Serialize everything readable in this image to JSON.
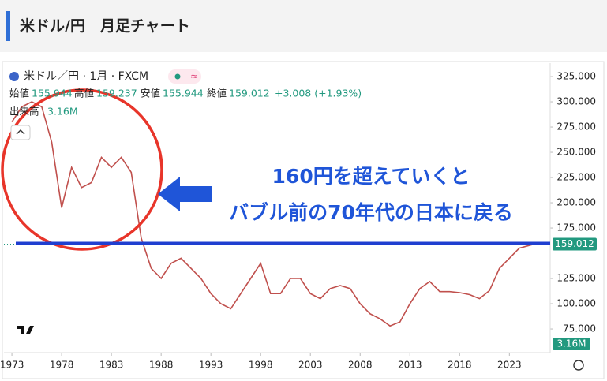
{
  "header": {
    "title": "米ドル/円　月足チャート"
  },
  "chart_data": {
    "type": "line",
    "symbol": "米ドル／円 · 1月 · FXCM",
    "legend": {
      "open_label": "始値",
      "open": 155.944,
      "high_label": "高値",
      "high": 159.237,
      "low_label": "安値",
      "low": 155.944,
      "close_label": "終値",
      "close": 159.012,
      "change": "+3.008 (+1.93%)",
      "volume_label": "出来高",
      "volume": "3.16M"
    },
    "annotations": [
      "160円を超えていくと",
      "バブル前の70年代の日本に戻る"
    ],
    "hline": 160,
    "series": [
      {
        "name": "米ドル／円",
        "color": "#c0504d",
        "x": [
          1973,
          1974,
          1975,
          1976,
          1977,
          1978,
          1979,
          1980,
          1981,
          1982,
          1983,
          1984,
          1985,
          1986,
          1987,
          1988,
          1989,
          1990,
          1991,
          1992,
          1993,
          1994,
          1995,
          1996,
          1997,
          1998,
          1999,
          2000,
          2001,
          2002,
          2003,
          2004,
          2005,
          2006,
          2007,
          2008,
          2009,
          2010,
          2011,
          2012,
          2013,
          2014,
          2015,
          2016,
          2017,
          2018,
          2019,
          2020,
          2021,
          2022,
          2023,
          2024,
          2025.5
        ],
        "values": [
          280,
          295,
          300,
          295,
          260,
          195,
          235,
          215,
          220,
          245,
          235,
          245,
          230,
          165,
          135,
          125,
          140,
          145,
          135,
          125,
          110,
          100,
          95,
          110,
          125,
          140,
          110,
          110,
          125,
          125,
          110,
          105,
          115,
          118,
          115,
          100,
          90,
          85,
          78,
          82,
          100,
          115,
          122,
          112,
          112,
          111,
          109,
          105,
          113,
          135,
          145,
          155,
          159
        ]
      }
    ],
    "xlim": [
      1972.2,
      2027.1
    ],
    "xticks": [
      1973,
      1978,
      1983,
      1988,
      1993,
      1998,
      2003,
      2008,
      2013,
      2018,
      2023
    ],
    "ylim": [
      51.6,
      334.4
    ],
    "yticks": [
      {
        "value": 75,
        "label": "75.000"
      },
      {
        "value": 100,
        "label": "100.000"
      },
      {
        "value": 125,
        "label": "125.000"
      },
      {
        "value": 175,
        "label": "175.000"
      },
      {
        "value": 200,
        "label": "200.000"
      },
      {
        "value": 225,
        "label": "225.000"
      },
      {
        "value": 250,
        "label": "250.000"
      },
      {
        "value": 275,
        "label": "275.000"
      },
      {
        "value": 300,
        "label": "300.000"
      },
      {
        "value": 325,
        "label": "325.000"
      }
    ]
  }
}
